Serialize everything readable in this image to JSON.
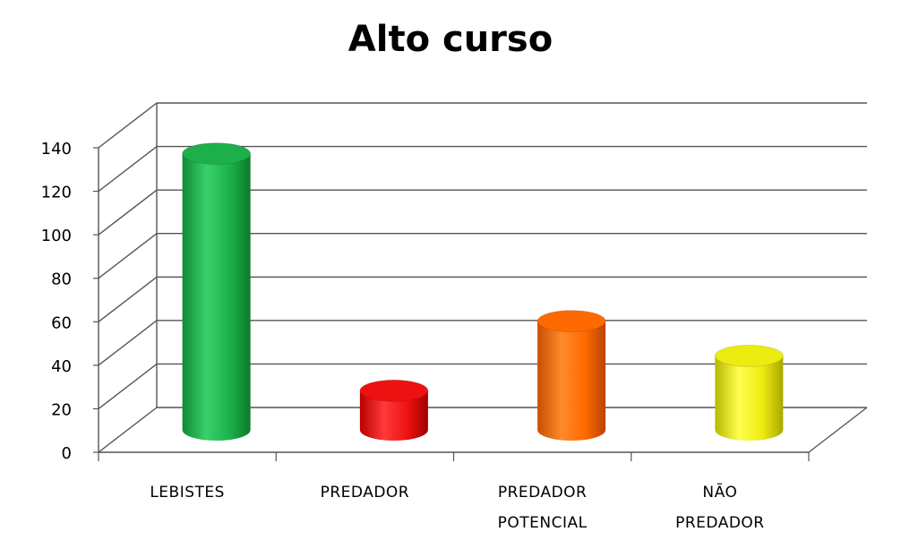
{
  "chart_data": {
    "type": "bar",
    "title": "Alto curso",
    "categories": [
      [
        "LEBISTES"
      ],
      [
        "PREDADOR"
      ],
      [
        "PREDADOR",
        "POTENCIAL"
      ],
      [
        "NÃO",
        "PREDADOR"
      ]
    ],
    "values": [
      127,
      18,
      50,
      34
    ],
    "colors": [
      "#1db04a",
      "#ee1111",
      "#ff6a00",
      "#ecec10"
    ],
    "ylim": [
      0,
      140
    ],
    "yticks": [
      0,
      20,
      40,
      60,
      80,
      100,
      120,
      140
    ],
    "grid": true,
    "legend": "none",
    "style": "3d-cylinder"
  }
}
